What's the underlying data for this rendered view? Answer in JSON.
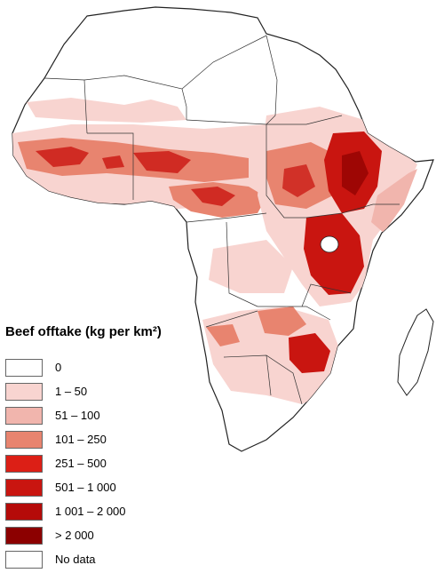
{
  "legend": {
    "title": "Beef offtake (kg per km²)",
    "items": [
      {
        "label": "0",
        "color": "#ffffff"
      },
      {
        "label": "1 – 50",
        "color": "#f8d4d0"
      },
      {
        "label": "51 – 100",
        "color": "#f1b5ad"
      },
      {
        "label": "101 – 250",
        "color": "#e8846f"
      },
      {
        "label": "251 – 500",
        "color": "#dc1f16"
      },
      {
        "label": "501 – 1 000",
        "color": "#c91510"
      },
      {
        "label": "1 001 – 2 000",
        "color": "#b50b09"
      },
      {
        "label": "> 2 000",
        "color": "#8c0000"
      },
      {
        "label": "No data",
        "color": "#ffffff"
      }
    ]
  },
  "map": {
    "region": "Africa",
    "colors": {
      "border": "#222222",
      "lake": "#ffffff",
      "ocean": "#ffffff"
    }
  }
}
